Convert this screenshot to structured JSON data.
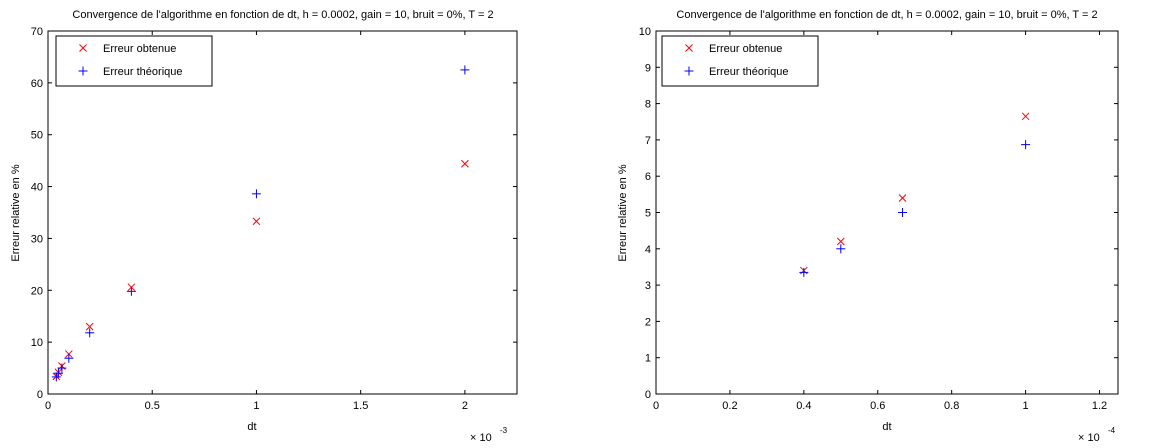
{
  "colors": {
    "obtained": "#ff0000",
    "theoretical": "#0000ff",
    "axis": "#000000",
    "background": "#ffffff"
  },
  "chart_data": [
    {
      "type": "scatter",
      "title": "Convergence de l'algorithme en fonction de dt, h = 0.0002, gain = 10, bruit = 0%, T = 2",
      "xlabel": "dt",
      "ylabel": "Erreur relative en %",
      "x_multiplier": "× 10",
      "x_exponent": "-3",
      "xlim": [
        0,
        2.25
      ],
      "ylim": [
        0,
        70
      ],
      "xticks": [
        0,
        0.5,
        1,
        1.5,
        2
      ],
      "xtick_labels": [
        "0",
        "0.5",
        "1",
        "1.5",
        "2"
      ],
      "yticks": [
        0,
        10,
        20,
        30,
        40,
        50,
        60,
        70
      ],
      "ytick_labels": [
        "0",
        "10",
        "20",
        "30",
        "40",
        "50",
        "60",
        "70"
      ],
      "grid": false,
      "legend_position": "top-left",
      "series": [
        {
          "name": "Erreur obtenue",
          "marker": "x",
          "color": "#ff0000",
          "x": [
            0.04,
            0.05,
            0.0667,
            0.1,
            0.2,
            0.4,
            1,
            2
          ],
          "y": [
            3.4,
            4.2,
            5.4,
            7.7,
            13.0,
            20.6,
            33.3,
            44.4
          ]
        },
        {
          "name": "Erreur théorique",
          "marker": "+",
          "color": "#0000ff",
          "x": [
            0.04,
            0.05,
            0.0667,
            0.1,
            0.2,
            0.4,
            1,
            2
          ],
          "y": [
            3.3,
            4.0,
            5.0,
            6.9,
            11.8,
            19.8,
            38.6,
            62.5
          ]
        }
      ]
    },
    {
      "type": "scatter",
      "title": "Convergence de l'algorithme en fonction de dt, h = 0.0002, gain = 10, bruit = 0%, T = 2",
      "xlabel": "dt",
      "ylabel": "Erreur relative en %",
      "x_multiplier": "× 10",
      "x_exponent": "-4",
      "xlim": [
        0,
        1.25
      ],
      "ylim": [
        0,
        10
      ],
      "xticks": [
        0,
        0.2,
        0.4,
        0.6,
        0.8,
        1,
        1.2
      ],
      "xtick_labels": [
        "0",
        "0.2",
        "0.4",
        "0.6",
        "0.8",
        "1",
        "1.2"
      ],
      "yticks": [
        0,
        1,
        2,
        3,
        4,
        5,
        6,
        7,
        8,
        9,
        10
      ],
      "ytick_labels": [
        "0",
        "1",
        "2",
        "3",
        "4",
        "5",
        "6",
        "7",
        "8",
        "9",
        "10"
      ],
      "grid": false,
      "legend_position": "top-left",
      "series": [
        {
          "name": "Erreur obtenue",
          "marker": "x",
          "color": "#ff0000",
          "x": [
            0.4,
            0.5,
            0.667,
            1
          ],
          "y": [
            3.4,
            4.2,
            5.4,
            7.65
          ]
        },
        {
          "name": "Erreur théorique",
          "marker": "+",
          "color": "#0000ff",
          "x": [
            0.4,
            0.5,
            0.667,
            1
          ],
          "y": [
            3.35,
            4.0,
            5.0,
            6.87
          ]
        }
      ]
    }
  ]
}
